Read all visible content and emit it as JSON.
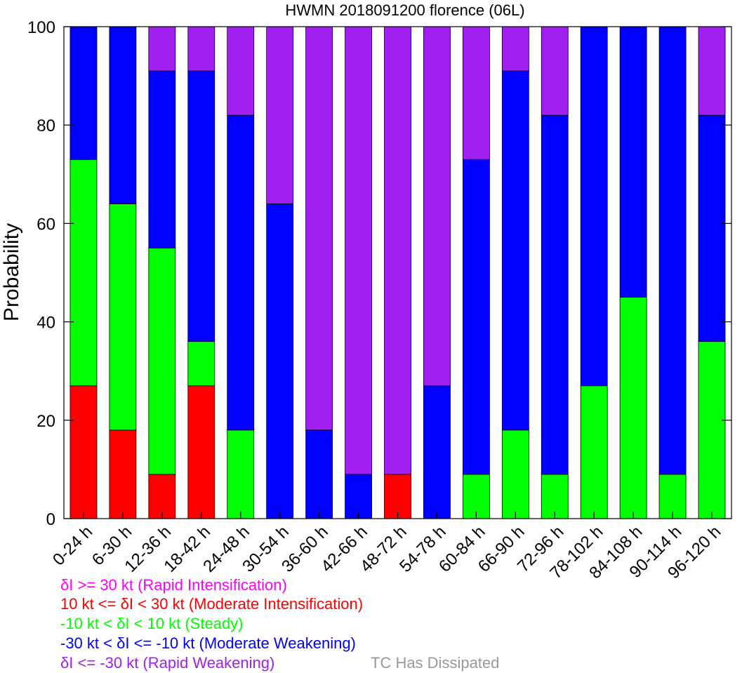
{
  "chart_data": {
    "type": "bar",
    "stacked": true,
    "title": "HWMN 2018091200 florence (06L)",
    "ylabel": "Probability",
    "xlabel": "",
    "ylim": [
      0,
      100
    ],
    "yticks": [
      0,
      20,
      40,
      60,
      80,
      100
    ],
    "grid": false,
    "categories": [
      "0-24 h",
      "6-30 h",
      "12-36 h",
      "18-42 h",
      "24-48 h",
      "30-54 h",
      "36-60 h",
      "42-66 h",
      "48-72 h",
      "54-78 h",
      "60-84 h",
      "66-90 h",
      "72-96 h",
      "78-102 h",
      "84-108 h",
      "90-114 h",
      "96-120 h"
    ],
    "series": [
      {
        "key": "moderate_intensification",
        "color": "#ff0000",
        "values": [
          27,
          18,
          9,
          27,
          0,
          0,
          0,
          0,
          9,
          0,
          0,
          0,
          0,
          0,
          0,
          0,
          0
        ]
      },
      {
        "key": "steady",
        "color": "#00ff00",
        "values": [
          46,
          46,
          46,
          9,
          18,
          0,
          0,
          0,
          0,
          0,
          9,
          18,
          9,
          27,
          45,
          9,
          36
        ]
      },
      {
        "key": "moderate_weakening",
        "color": "#0000ff",
        "values": [
          27,
          36,
          36,
          55,
          64,
          64,
          18,
          9,
          0,
          27,
          64,
          73,
          73,
          73,
          55,
          91,
          46
        ]
      },
      {
        "key": "rapid_weakening",
        "color": "#a020f0",
        "values": [
          0,
          0,
          9,
          9,
          18,
          36,
          82,
          91,
          91,
          73,
          27,
          9,
          18,
          0,
          0,
          0,
          18
        ]
      },
      {
        "key": "rapid_intensification",
        "color": "#ff00ff",
        "values": [
          0,
          0,
          0,
          0,
          0,
          0,
          0,
          0,
          0,
          0,
          0,
          0,
          0,
          0,
          0,
          0,
          0
        ]
      }
    ],
    "legend": {
      "placement": "bottom-left",
      "entries": [
        {
          "text": "δI >= 30 kt (Rapid Intensification)",
          "color": "#ff00ff"
        },
        {
          "text": "10 kt <= δI < 30 kt (Moderate Intensification)",
          "color": "#ff0000"
        },
        {
          "text": "-10 kt < δI < 10 kt (Steady)",
          "color": "#00ff00"
        },
        {
          "text": "-30 kt < δI <= -10 kt (Moderate Weakening)",
          "color": "#0000ff"
        },
        {
          "text": "δI <= -30 kt (Rapid Weakening)",
          "color": "#a020f0"
        }
      ],
      "dissipated": {
        "text": "TC Has Dissipated",
        "color": "#999999"
      }
    }
  }
}
